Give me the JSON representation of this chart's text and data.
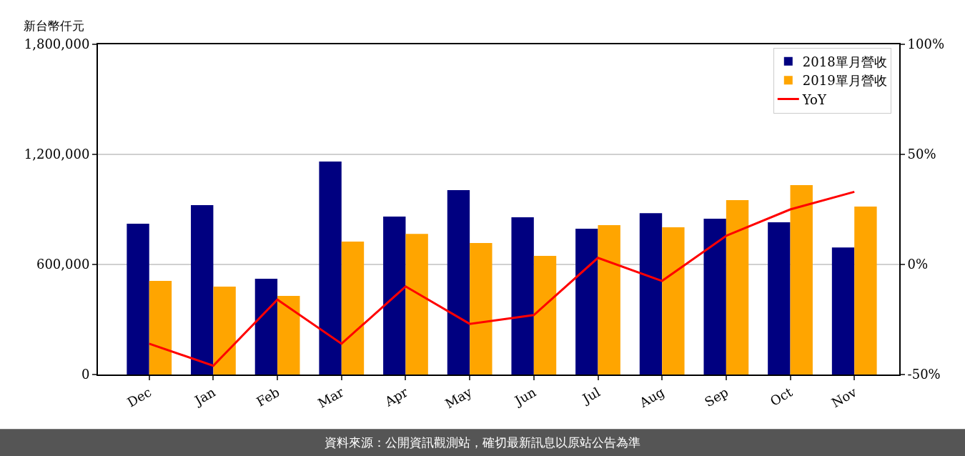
{
  "chart_data": {
    "type": "bar",
    "ylabel": "新台幣仟元",
    "categories": [
      "Dec",
      "Jan",
      "Feb",
      "Mar",
      "Apr",
      "May",
      "Jun",
      "Jul",
      "Aug",
      "Sep",
      "Oct",
      "Nov"
    ],
    "series": [
      {
        "name": "2018單月營收",
        "color": "#000080",
        "values": [
          822000,
          923000,
          522000,
          1161000,
          861000,
          1005000,
          857000,
          795000,
          880000,
          849000,
          830000,
          693000
        ]
      },
      {
        "name": "2019單月營收",
        "color": "#ffa500",
        "values": [
          510000,
          479000,
          429000,
          725000,
          767000,
          717000,
          647000,
          814000,
          803000,
          951000,
          1032000,
          916000
        ]
      },
      {
        "name": "YoY",
        "type": "line",
        "axis": "y2",
        "color": "#ff0000",
        "values": [
          -36,
          -46,
          -16,
          -36,
          -10,
          -27,
          -23,
          3,
          -7.5,
          13,
          25,
          33
        ]
      }
    ],
    "ylim": [
      0,
      1800000
    ],
    "yticks": [
      {
        "value": 0,
        "label": "0"
      },
      {
        "value": 600000,
        "label": "600,000"
      },
      {
        "value": 1200000,
        "label": "1,200,000"
      },
      {
        "value": 1800000,
        "label": "1,800,000"
      }
    ],
    "y2lim": [
      -50,
      100
    ],
    "y2ticks": [
      {
        "value": -50,
        "label": "-50%"
      },
      {
        "value": 0,
        "label": "0%"
      },
      {
        "value": 50,
        "label": "50%"
      },
      {
        "value": 100,
        "label": "100%"
      }
    ],
    "grid": "y",
    "legend": "top right",
    "marker": "none",
    "line_style": "solid",
    "annotations": [
      "資料來源：公開資訊觀測站，確切最新訊息以原站公告為準"
    ]
  }
}
